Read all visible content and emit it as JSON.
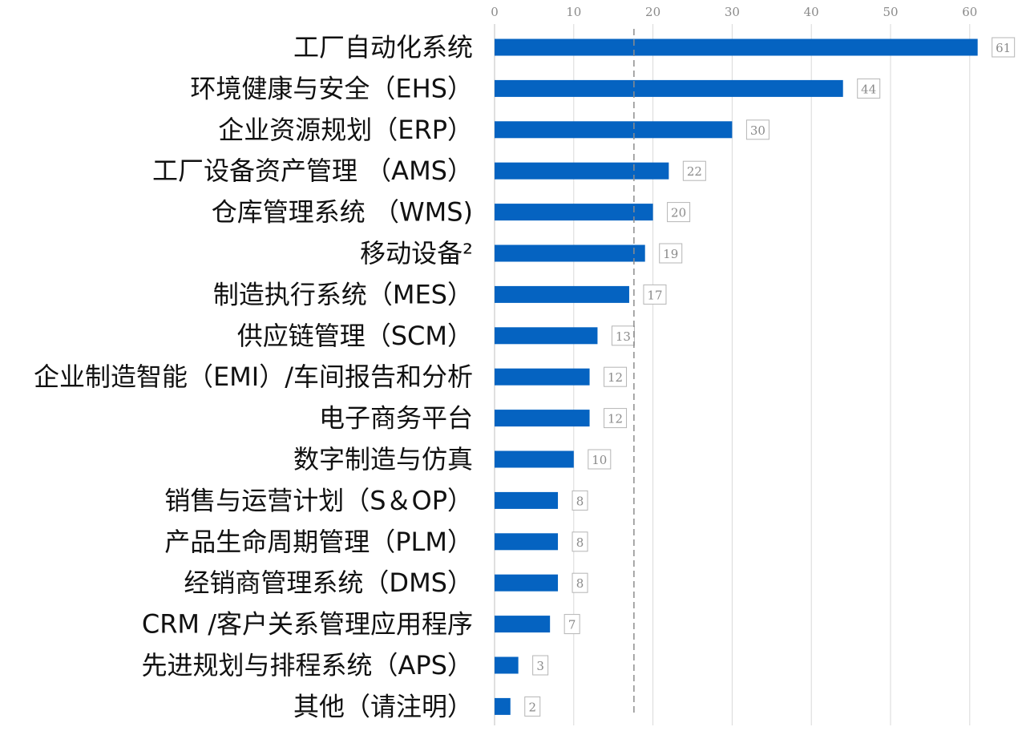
{
  "chart_data": {
    "type": "bar",
    "orientation": "horizontal",
    "categories": [
      "工厂自动化系统",
      "环境健康与安全（EHS）",
      "企业资源规划（ERP）",
      "工厂设备资产管理 （AMS）",
      "仓库管理系统 （WMS)",
      "移动设备²",
      "制造执行系统（MES）",
      "供应链管理（SCM）",
      "企业制造智能（EMI）/车间报告和分析",
      "电子商务平台",
      "数字制造与仿真",
      "销售与运营计划（S＆OP）",
      "产品生命周期管理（PLM）",
      "经销商管理系统（DMS）",
      "CRM /客户关系管理应用程序",
      "先进规划与排程系统（APS）",
      "其他（请注明）"
    ],
    "values": [
      61,
      44,
      30,
      22,
      20,
      19,
      17,
      13,
      12,
      12,
      10,
      8,
      8,
      8,
      7,
      3,
      2
    ],
    "xlim": [
      0,
      63
    ],
    "xticks": [
      0,
      10,
      20,
      30,
      40,
      50,
      60
    ],
    "reference_line": 17.6,
    "bar_color": "#0563c1",
    "grid": true,
    "x_axis_position": "top",
    "title": "",
    "xlabel": "",
    "ylabel": ""
  }
}
